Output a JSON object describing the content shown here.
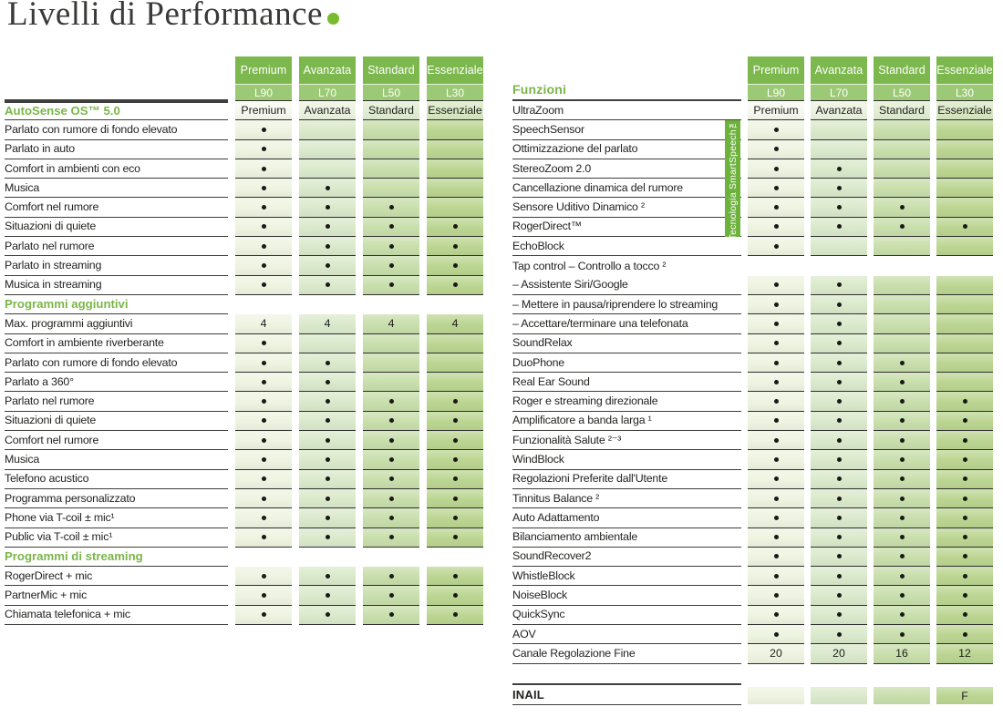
{
  "title": {
    "text": "Livelli di Performance"
  },
  "colors": {
    "green": "#7ab648",
    "hdr1": "#7cb84d",
    "hdr2": "#9cc975",
    "line": "#3e3e3d",
    "cellline": "#2f2f2e",
    "bargreen": "#6eb23e",
    "dotgreen": "#79ba2e",
    "title": "#3a3a38",
    "ink": "#232321",
    "c0": "#eef4e1",
    "c1": "#dae9cb",
    "c2": "#c8deab",
    "c3": "#bbd591",
    "t0": "#f7f9f1",
    "t1": "#ecf3e0",
    "t2": "#e2eed3",
    "t3": "#d9e9c4"
  },
  "columns": [
    {
      "tier": "Premium",
      "model": "L90"
    },
    {
      "tier": "Avanzata",
      "model": "L70"
    },
    {
      "tier": "Standard",
      "model": "L50"
    },
    {
      "tier": "Essenziale",
      "model": "L30"
    }
  ],
  "left_table": {
    "rows": [
      {
        "type": "tier-section",
        "label": "AutoSense OS™ 5.0",
        "cells": [
          "Premium",
          "Avanzata",
          "Standard",
          "Essenziale"
        ]
      },
      {
        "type": "feature",
        "label": "Parlato con rumore di fondo elevato",
        "cells": [
          "dot",
          "",
          "",
          ""
        ]
      },
      {
        "type": "feature",
        "label": "Parlato in auto",
        "cells": [
          "dot",
          "",
          "",
          ""
        ]
      },
      {
        "type": "feature",
        "label": "Comfort in ambienti con eco",
        "cells": [
          "dot",
          "",
          "",
          ""
        ]
      },
      {
        "type": "feature",
        "label": "Musica",
        "cells": [
          "dot",
          "dot",
          "",
          ""
        ]
      },
      {
        "type": "feature",
        "label": "Comfort nel rumore",
        "cells": [
          "dot",
          "dot",
          "dot",
          ""
        ]
      },
      {
        "type": "feature",
        "label": "Situazioni di quiete",
        "cells": [
          "dot",
          "dot",
          "dot",
          "dot"
        ]
      },
      {
        "type": "feature",
        "label": "Parlato nel rumore",
        "cells": [
          "dot",
          "dot",
          "dot",
          "dot"
        ]
      },
      {
        "type": "feature",
        "label": "Parlato in streaming",
        "cells": [
          "dot",
          "dot",
          "dot",
          "dot"
        ]
      },
      {
        "type": "feature",
        "label": "Musica in streaming",
        "cells": [
          "dot",
          "dot",
          "dot",
          "dot"
        ]
      },
      {
        "type": "section",
        "label": "Programmi aggiuntivi"
      },
      {
        "type": "feature",
        "label": "Max. programmi aggiuntivi",
        "cells": [
          "4",
          "4",
          "4",
          "4"
        ]
      },
      {
        "type": "feature",
        "label": "Comfort in ambiente riverberante",
        "cells": [
          "dot",
          "",
          "",
          ""
        ]
      },
      {
        "type": "feature",
        "label": "Parlato con rumore di fondo elevato",
        "cells": [
          "dot",
          "dot",
          "",
          ""
        ]
      },
      {
        "type": "feature",
        "label": "Parlato a 360°",
        "cells": [
          "dot",
          "dot",
          "",
          ""
        ]
      },
      {
        "type": "feature",
        "label": "Parlato nel rumore",
        "cells": [
          "dot",
          "dot",
          "dot",
          "dot"
        ]
      },
      {
        "type": "feature",
        "label": "Situazioni di quiete",
        "cells": [
          "dot",
          "dot",
          "dot",
          "dot"
        ]
      },
      {
        "type": "feature",
        "label": "Comfort nel rumore",
        "cells": [
          "dot",
          "dot",
          "dot",
          "dot"
        ]
      },
      {
        "type": "feature",
        "label": "Musica",
        "cells": [
          "dot",
          "dot",
          "dot",
          "dot"
        ]
      },
      {
        "type": "feature",
        "label": "Telefono acustico",
        "cells": [
          "dot",
          "dot",
          "dot",
          "dot"
        ]
      },
      {
        "type": "feature",
        "label": "Programma personalizzato",
        "cells": [
          "dot",
          "dot",
          "dot",
          "dot"
        ]
      },
      {
        "type": "feature",
        "label": "Phone via T-coil ± mic¹",
        "cells": [
          "dot",
          "dot",
          "dot",
          "dot"
        ]
      },
      {
        "type": "feature",
        "label": "Public via T-coil ± mic¹",
        "cells": [
          "dot",
          "dot",
          "dot",
          "dot"
        ]
      },
      {
        "type": "section",
        "label": "Programmi di streaming"
      },
      {
        "type": "feature",
        "label": "RogerDirect + mic",
        "cells": [
          "dot",
          "dot",
          "dot",
          "dot"
        ]
      },
      {
        "type": "feature",
        "label": "PartnerMic + mic",
        "cells": [
          "dot",
          "dot",
          "dot",
          "dot"
        ]
      },
      {
        "type": "feature",
        "label": "Chiamata telefonica + mic",
        "cells": [
          "dot",
          "dot",
          "dot",
          "dot"
        ]
      }
    ]
  },
  "right_table": {
    "header": "Funzioni",
    "smartspeech_label": "Tecnologia SmartSpeech™",
    "rows": [
      {
        "type": "tier",
        "label": "UltraZoom",
        "cells": [
          "Premium",
          "Avanzata",
          "Standard",
          "Essenziale"
        ]
      },
      {
        "type": "feature",
        "label": "SpeechSensor",
        "cells": [
          "dot",
          "",
          "",
          ""
        ]
      },
      {
        "type": "feature",
        "label": "Ottimizzazione del parlato",
        "cells": [
          "dot",
          "",
          "",
          ""
        ]
      },
      {
        "type": "feature",
        "label": "StereoZoom 2.0",
        "cells": [
          "dot",
          "dot",
          "",
          ""
        ]
      },
      {
        "type": "feature",
        "label": "Cancellazione dinamica del rumore",
        "cells": [
          "dot",
          "dot",
          "",
          ""
        ]
      },
      {
        "type": "feature",
        "label": "Sensore Uditivo Dinamico ²",
        "cells": [
          "dot",
          "dot",
          "dot",
          ""
        ]
      },
      {
        "type": "feature",
        "label": "RogerDirect™",
        "cells": [
          "dot",
          "dot",
          "dot",
          "dot"
        ]
      },
      {
        "type": "feature",
        "label": "EchoBlock",
        "cells": [
          "dot",
          "",
          "",
          ""
        ]
      },
      {
        "type": "nocells",
        "label": "Tap control – Controllo a tocco ²"
      },
      {
        "type": "feature",
        "label": "– Assistente Siri/Google",
        "cells": [
          "dot",
          "dot",
          "",
          ""
        ]
      },
      {
        "type": "feature",
        "label": "– Mettere in pausa/riprendere lo streaming",
        "cells": [
          "dot",
          "dot",
          "",
          ""
        ]
      },
      {
        "type": "feature",
        "label": "– Accettare/terminare una telefonata",
        "cells": [
          "dot",
          "dot",
          "",
          ""
        ]
      },
      {
        "type": "feature",
        "label": "SoundRelax",
        "cells": [
          "dot",
          "dot",
          "",
          ""
        ]
      },
      {
        "type": "feature",
        "label": "DuoPhone",
        "cells": [
          "dot",
          "dot",
          "dot",
          ""
        ]
      },
      {
        "type": "feature",
        "label": "Real Ear Sound",
        "cells": [
          "dot",
          "dot",
          "dot",
          ""
        ]
      },
      {
        "type": "feature",
        "label": "Roger e streaming direzionale",
        "cells": [
          "dot",
          "dot",
          "dot",
          "dot"
        ]
      },
      {
        "type": "feature",
        "label": "Amplificatore a banda larga ¹",
        "cells": [
          "dot",
          "dot",
          "dot",
          "dot"
        ]
      },
      {
        "type": "feature",
        "label": "Funzionalità Salute ²⁻³",
        "cells": [
          "dot",
          "dot",
          "dot",
          "dot"
        ]
      },
      {
        "type": "feature",
        "label": "WindBlock",
        "cells": [
          "dot",
          "dot",
          "dot",
          "dot"
        ]
      },
      {
        "type": "feature",
        "label": "Regolazioni Preferite dall'Utente",
        "cells": [
          "dot",
          "dot",
          "dot",
          "dot"
        ]
      },
      {
        "type": "feature",
        "label": "Tinnitus Balance ²",
        "cells": [
          "dot",
          "dot",
          "dot",
          "dot"
        ]
      },
      {
        "type": "feature",
        "label": "Auto Adattamento",
        "cells": [
          "dot",
          "dot",
          "dot",
          "dot"
        ]
      },
      {
        "type": "feature",
        "label": "Bilanciamento ambientale",
        "cells": [
          "dot",
          "dot",
          "dot",
          "dot"
        ]
      },
      {
        "type": "feature",
        "label": "SoundRecover2",
        "cells": [
          "dot",
          "dot",
          "dot",
          "dot"
        ]
      },
      {
        "type": "feature",
        "label": "WhistleBlock",
        "cells": [
          "dot",
          "dot",
          "dot",
          "dot"
        ]
      },
      {
        "type": "feature",
        "label": "NoiseBlock",
        "cells": [
          "dot",
          "dot",
          "dot",
          "dot"
        ]
      },
      {
        "type": "feature",
        "label": "QuickSync",
        "cells": [
          "dot",
          "dot",
          "dot",
          "dot"
        ]
      },
      {
        "type": "feature",
        "label": "AOV",
        "cells": [
          "dot",
          "dot",
          "dot",
          "dot"
        ]
      },
      {
        "type": "feature",
        "label": "Canale Regolazione Fine",
        "cells": [
          "20",
          "20",
          "16",
          "12"
        ]
      }
    ],
    "inail": {
      "label": "INAIL",
      "cells": [
        "",
        "",
        "",
        "F"
      ]
    }
  }
}
